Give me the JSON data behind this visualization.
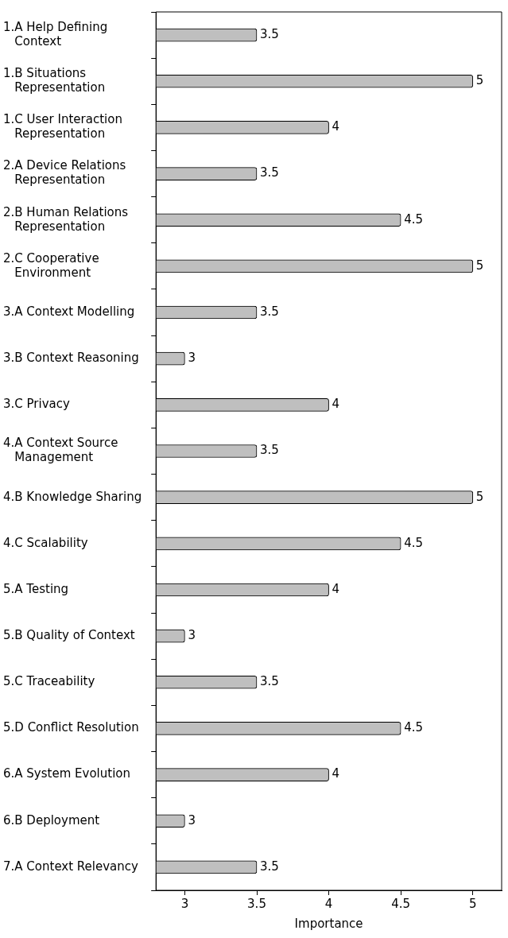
{
  "chart_data": {
    "type": "bar",
    "orientation": "horizontal",
    "xlabel": "Importance",
    "categories": [
      "1.A Help Defining Context",
      "1.B Situations Representation",
      "1.C User Interaction Representation",
      "2.A Device Relations Representation",
      "2.B Human Relations Representation",
      "2.C Cooperative Environment",
      "3.A Context Modelling",
      "3.B Context Reasoning",
      "3.C Privacy",
      "4.A Context Source Management",
      "4.B Knowledge Sharing",
      "4.C Scalability",
      "5.A Testing",
      "5.B Quality of Context",
      "5.C Traceability",
      "5.D Conflict Resolution",
      "6.A System Evolution",
      "6.B Deployment",
      "7.A Context Relevancy"
    ],
    "values": [
      3.5,
      5,
      4,
      3.5,
      4.5,
      5,
      3.5,
      3,
      4,
      3.5,
      5,
      4.5,
      4,
      3,
      3.5,
      4.5,
      4,
      3,
      3.5
    ],
    "color": "#bfbfbf",
    "xlim": [
      2.8,
      5.2
    ],
    "xticks": [
      3,
      3.5,
      4,
      4.5,
      5
    ],
    "data_labels": true
  }
}
